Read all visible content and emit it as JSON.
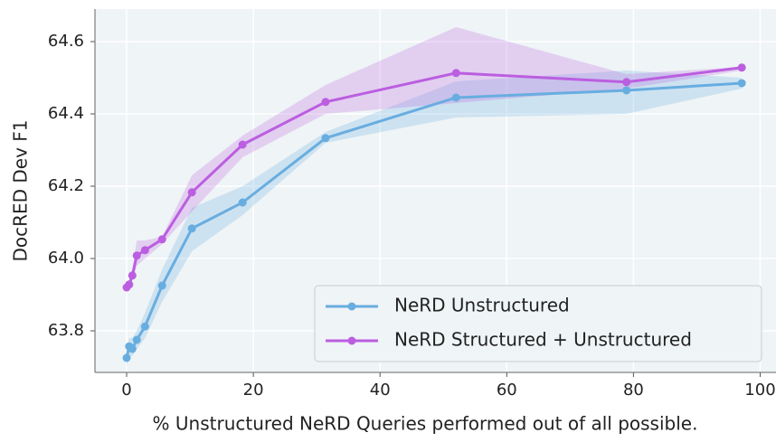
{
  "chart_data": {
    "type": "line",
    "xlabel": "% Unstructured NeRD Queries performed out of all possible.",
    "ylabel": "DocRED Dev F1",
    "x": [
      0,
      0.4,
      0.9,
      1.6,
      2.9,
      5.6,
      10.3,
      18.3,
      31.4,
      52,
      78.9,
      97.1
    ],
    "series": [
      {
        "name": "NeRD Unstructured",
        "color": "#68ade0",
        "values": [
          63.725,
          63.757,
          63.75,
          63.775,
          63.812,
          63.925,
          64.083,
          64.155,
          64.333,
          64.445,
          64.465,
          64.485
        ],
        "lower": [
          63.7,
          63.73,
          63.73,
          63.75,
          63.78,
          63.88,
          64.02,
          64.12,
          64.32,
          64.39,
          64.4,
          64.47
        ],
        "upper": [
          63.75,
          63.78,
          63.78,
          63.8,
          63.85,
          63.97,
          64.14,
          64.2,
          64.35,
          64.49,
          64.52,
          64.5
        ]
      },
      {
        "name": "NeRD Structured + Unstructured",
        "color": "#bb5ee0",
        "values": [
          63.92,
          63.928,
          63.953,
          64.008,
          64.023,
          64.053,
          64.183,
          64.315,
          64.433,
          64.513,
          64.488,
          64.528
        ],
        "lower": [
          63.91,
          63.92,
          63.94,
          63.98,
          64.0,
          64.04,
          64.13,
          64.28,
          64.4,
          64.43,
          64.47,
          64.52
        ],
        "upper": [
          63.93,
          63.94,
          63.97,
          64.05,
          64.05,
          64.06,
          64.23,
          64.34,
          64.48,
          64.64,
          64.51,
          64.53
        ]
      }
    ],
    "xlim": [
      -5,
      102.5
    ],
    "ylim": [
      63.685,
      64.69
    ],
    "xticks": [
      0,
      20,
      40,
      60,
      80,
      100
    ],
    "yticks": [
      63.8,
      {
        "value": 64.0,
        "label": "64.0"
      },
      64.2,
      64.4,
      64.6
    ],
    "grid": true,
    "legend": "lower right"
  }
}
